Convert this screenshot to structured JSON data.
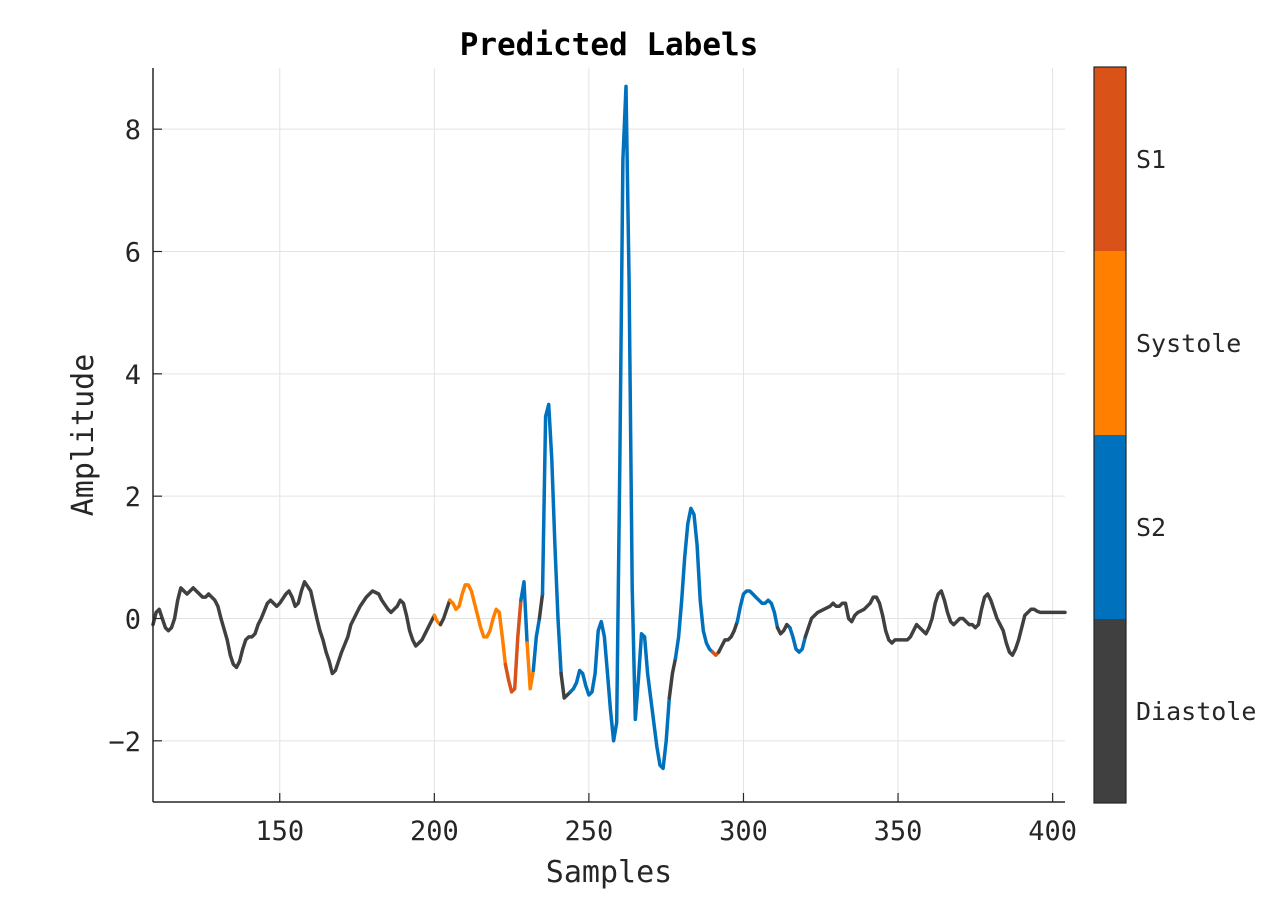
{
  "chart_data": {
    "type": "line",
    "title": "Predicted Labels",
    "xlabel": "Samples",
    "ylabel": "Amplitude",
    "xlim": [
      109,
      404
    ],
    "ylim": [
      -3,
      9
    ],
    "xticks": [
      150,
      200,
      250,
      300,
      350,
      400
    ],
    "yticks": [
      -2,
      0,
      2,
      4,
      6,
      8
    ],
    "xtick_labels": [
      "150",
      "200",
      "250",
      "300",
      "350",
      "400"
    ],
    "ytick_labels": [
      "−2",
      "0",
      "2",
      "4",
      "6",
      "8"
    ],
    "grid": true,
    "colorbar": {
      "labels": [
        "S1",
        "Systole",
        "S2",
        "Diastole"
      ],
      "colors": [
        "#D95319",
        "#FF8000",
        "#0072BD",
        "#404040"
      ]
    },
    "series": [
      {
        "label": "Diastole",
        "color": "#404040",
        "x": [
          109,
          110,
          111,
          113,
          114,
          115,
          116,
          117,
          118,
          119,
          120,
          121,
          122,
          123,
          124,
          125,
          126,
          127,
          129,
          130,
          131,
          133,
          134,
          135,
          136,
          137,
          138,
          139,
          140,
          141,
          142,
          143,
          144,
          146,
          147,
          149,
          150,
          152,
          153,
          154,
          155,
          156,
          157,
          158,
          160,
          162,
          163,
          164,
          165,
          166,
          167,
          168,
          170,
          172,
          173,
          175,
          176,
          178,
          180,
          182,
          183,
          185,
          186,
          188,
          189,
          190,
          191,
          192,
          193,
          194,
          195,
          196,
          198,
          199,
          200
        ],
        "y": [
          -0.1,
          0.1,
          0.15,
          -0.15,
          -0.2,
          -0.15,
          0.0,
          0.3,
          0.5,
          0.45,
          0.4,
          0.45,
          0.5,
          0.45,
          0.4,
          0.35,
          0.35,
          0.4,
          0.3,
          0.2,
          0.0,
          -0.35,
          -0.6,
          -0.75,
          -0.8,
          -0.7,
          -0.5,
          -0.35,
          -0.3,
          -0.3,
          -0.25,
          -0.1,
          0.0,
          0.25,
          0.3,
          0.2,
          0.25,
          0.4,
          0.45,
          0.35,
          0.2,
          0.25,
          0.45,
          0.6,
          0.45,
          0.0,
          -0.2,
          -0.35,
          -0.55,
          -0.7,
          -0.9,
          -0.85,
          -0.55,
          -0.3,
          -0.1,
          0.1,
          0.2,
          0.35,
          0.45,
          0.4,
          0.3,
          0.15,
          0.1,
          0.2,
          0.3,
          0.25,
          0.05,
          -0.2,
          -0.35,
          -0.45,
          -0.4,
          -0.35,
          -0.15,
          -0.05,
          0.05
        ]
      },
      {
        "label": "Systole",
        "color": "#FF8000",
        "x": [
          200,
          201,
          202
        ],
        "y": [
          0.05,
          -0.05,
          -0.1
        ]
      },
      {
        "label": "Diastole",
        "color": "#404040",
        "x": [
          202,
          203,
          204,
          205
        ],
        "y": [
          -0.1,
          0.0,
          0.15,
          0.3
        ]
      },
      {
        "label": "Systole",
        "color": "#FF8000",
        "x": [
          205,
          206,
          207,
          208,
          209,
          210,
          211,
          212,
          213,
          214,
          215,
          216,
          217,
          218,
          219,
          220,
          221,
          222,
          223
        ],
        "y": [
          0.3,
          0.25,
          0.15,
          0.2,
          0.4,
          0.55,
          0.55,
          0.45,
          0.25,
          0.05,
          -0.15,
          -0.3,
          -0.3,
          -0.2,
          0.0,
          0.15,
          0.1,
          -0.3,
          -0.75
        ]
      },
      {
        "label": "S1",
        "color": "#D95319",
        "x": [
          223,
          224,
          225,
          226,
          227,
          228
        ],
        "y": [
          -0.75,
          -1.0,
          -1.2,
          -1.15,
          -0.3,
          0.3
        ]
      },
      {
        "label": "S2",
        "color": "#0072BD",
        "x": [
          228,
          229,
          230
        ],
        "y": [
          0.3,
          0.6,
          -0.4
        ]
      },
      {
        "label": "Systole",
        "color": "#FF8000",
        "x": [
          230,
          231,
          232
        ],
        "y": [
          -0.4,
          -1.15,
          -0.85
        ]
      },
      {
        "label": "S2",
        "color": "#0072BD",
        "x": [
          232,
          233,
          234
        ],
        "y": [
          -0.85,
          -0.3,
          0.0
        ]
      },
      {
        "label": "Diastole",
        "color": "#404040",
        "x": [
          234,
          235
        ],
        "y": [
          0.0,
          0.4
        ]
      },
      {
        "label": "S2",
        "color": "#0072BD",
        "x": [
          235,
          236,
          237,
          238,
          239,
          240,
          241
        ],
        "y": [
          0.4,
          3.3,
          3.5,
          2.6,
          1.2,
          0.0,
          -0.9
        ]
      },
      {
        "label": "Diastole",
        "color": "#404040",
        "x": [
          241,
          242,
          243,
          244
        ],
        "y": [
          -0.9,
          -1.3,
          -1.25,
          -1.2
        ]
      },
      {
        "label": "S2",
        "color": "#0072BD",
        "x": [
          244,
          245,
          246,
          247,
          248,
          249,
          250,
          251,
          252,
          253,
          254,
          255,
          256,
          257,
          258,
          259,
          260,
          261,
          262,
          263,
          264,
          265,
          266,
          267,
          268,
          269,
          270,
          271,
          272,
          273,
          274,
          275,
          276
        ],
        "y": [
          -1.2,
          -1.15,
          -1.05,
          -0.85,
          -0.9,
          -1.1,
          -1.25,
          -1.2,
          -0.9,
          -0.2,
          -0.05,
          -0.3,
          -0.9,
          -1.5,
          -2.0,
          -1.7,
          2.5,
          7.5,
          8.7,
          5.5,
          0.5,
          -1.65,
          -1.0,
          -0.25,
          -0.3,
          -0.9,
          -1.3,
          -1.7,
          -2.1,
          -2.4,
          -2.45,
          -2.0,
          -1.3
        ]
      },
      {
        "label": "Diastole",
        "color": "#404040",
        "x": [
          276,
          277,
          278
        ],
        "y": [
          -1.3,
          -0.9,
          -0.65
        ]
      },
      {
        "label": "S2",
        "color": "#0072BD",
        "x": [
          278,
          279,
          280,
          281,
          282,
          283,
          284,
          285,
          286,
          287,
          288,
          289,
          290
        ],
        "y": [
          -0.65,
          -0.3,
          0.3,
          1.0,
          1.55,
          1.8,
          1.7,
          1.2,
          0.3,
          -0.2,
          -0.4,
          -0.5,
          -0.55
        ]
      },
      {
        "label": "S1",
        "color": "#D95319",
        "x": [
          290,
          291,
          292
        ],
        "y": [
          -0.55,
          -0.6,
          -0.55
        ]
      },
      {
        "label": "Diastole",
        "color": "#404040",
        "x": [
          292,
          293,
          294,
          295,
          296,
          297,
          298
        ],
        "y": [
          -0.55,
          -0.45,
          -0.35,
          -0.35,
          -0.3,
          -0.2,
          -0.05
        ]
      },
      {
        "label": "S2",
        "color": "#0072BD",
        "x": [
          298,
          299,
          300,
          301,
          302,
          303,
          304,
          305,
          306,
          307,
          308,
          309,
          310,
          311
        ],
        "y": [
          -0.05,
          0.2,
          0.4,
          0.45,
          0.45,
          0.4,
          0.35,
          0.3,
          0.25,
          0.25,
          0.3,
          0.25,
          0.1,
          -0.15
        ]
      },
      {
        "label": "Diastole",
        "color": "#404040",
        "x": [
          311,
          312,
          313,
          314,
          315
        ],
        "y": [
          -0.15,
          -0.25,
          -0.2,
          -0.1,
          -0.15
        ]
      },
      {
        "label": "S2",
        "color": "#0072BD",
        "x": [
          315,
          316,
          317,
          318,
          319,
          320
        ],
        "y": [
          -0.15,
          -0.3,
          -0.5,
          -0.55,
          -0.5,
          -0.3
        ]
      },
      {
        "label": "Diastole",
        "color": "#404040",
        "x": [
          320,
          322,
          324,
          326,
          328,
          329,
          330,
          331,
          332,
          333,
          334,
          335,
          336,
          337,
          339,
          341,
          342,
          343,
          344,
          345,
          346,
          347,
          348,
          349,
          350,
          351,
          352,
          353,
          354,
          355,
          356,
          357,
          358,
          359,
          360,
          361,
          362,
          363,
          364,
          365,
          366,
          367,
          368,
          369,
          370,
          371,
          372,
          373,
          374,
          375,
          376,
          377,
          378,
          379,
          380,
          381,
          382,
          383,
          384,
          385,
          386,
          387,
          388,
          389,
          390,
          391,
          392,
          393,
          394,
          395,
          396,
          397,
          398,
          399,
          400,
          401,
          402,
          403,
          404
        ],
        "y": [
          -0.3,
          0.0,
          0.1,
          0.15,
          0.2,
          0.25,
          0.2,
          0.2,
          0.25,
          0.25,
          0.0,
          -0.05,
          0.05,
          0.1,
          0.15,
          0.25,
          0.35,
          0.35,
          0.25,
          0.05,
          -0.2,
          -0.35,
          -0.4,
          -0.35,
          -0.35,
          -0.35,
          -0.35,
          -0.35,
          -0.3,
          -0.2,
          -0.1,
          -0.15,
          -0.2,
          -0.25,
          -0.15,
          0.0,
          0.25,
          0.4,
          0.45,
          0.3,
          0.1,
          -0.05,
          -0.1,
          -0.05,
          0.0,
          0.0,
          -0.05,
          -0.1,
          -0.1,
          -0.15,
          -0.1,
          0.15,
          0.35,
          0.4,
          0.3,
          0.15,
          0.0,
          -0.1,
          -0.2,
          -0.4,
          -0.55,
          -0.6,
          -0.5,
          -0.35,
          -0.15,
          0.05,
          0.1,
          0.15,
          0.15,
          0.12,
          0.1,
          0.1,
          0.1,
          0.1,
          0.1,
          0.1,
          0.1,
          0.1,
          0.1
        ]
      }
    ]
  }
}
